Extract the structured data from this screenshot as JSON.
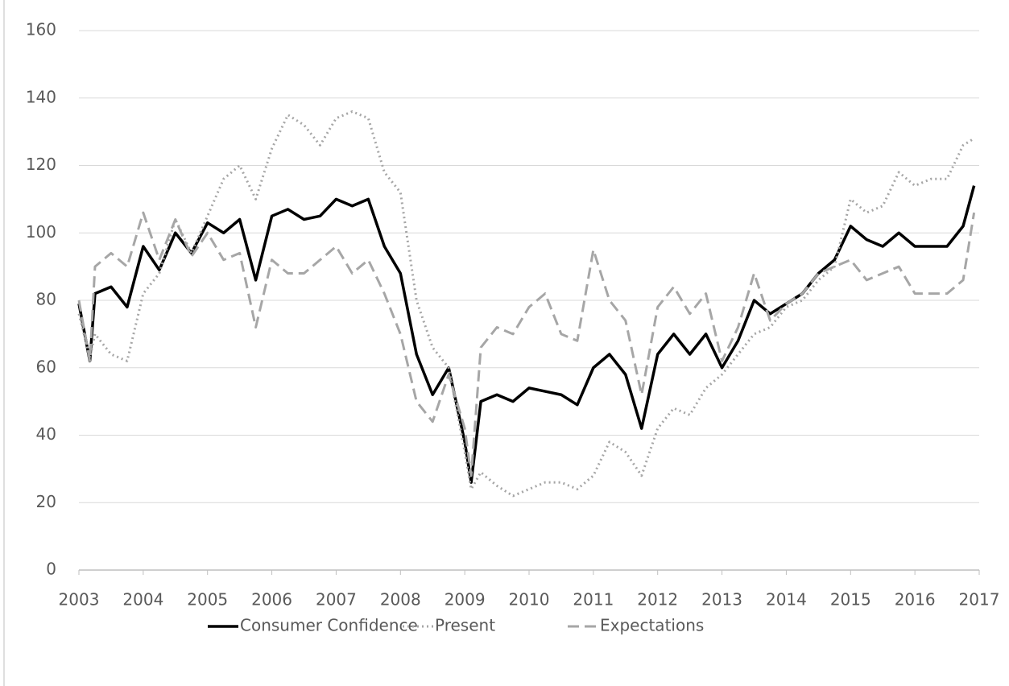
{
  "chart_data": {
    "type": "line",
    "x": [
      2003,
      2003.17,
      2003.25,
      2003.5,
      2003.75,
      2004,
      2004.25,
      2004.5,
      2004.75,
      2005,
      2005.25,
      2005.5,
      2005.75,
      2006,
      2006.25,
      2006.5,
      2006.75,
      2007,
      2007.25,
      2007.5,
      2007.75,
      2008,
      2008.25,
      2008.5,
      2008.75,
      2009,
      2009.1,
      2009.25,
      2009.5,
      2009.75,
      2010,
      2010.25,
      2010.5,
      2010.75,
      2011,
      2011.25,
      2011.5,
      2011.75,
      2012,
      2012.25,
      2012.5,
      2012.75,
      2013,
      2013.25,
      2013.5,
      2013.75,
      2014,
      2014.25,
      2014.5,
      2014.75,
      2015,
      2015.25,
      2015.5,
      2015.75,
      2016,
      2016.25,
      2016.5,
      2016.75,
      2016.92
    ],
    "series": [
      {
        "name": "Consumer Confidence",
        "color": "#000000",
        "style": "solid",
        "values": [
          79,
          62,
          82,
          84,
          78,
          96,
          89,
          100,
          94,
          103,
          100,
          104,
          86,
          105,
          107,
          104,
          105,
          110,
          108,
          110,
          96,
          88,
          64,
          52,
          60,
          38,
          26,
          50,
          52,
          50,
          54,
          53,
          52,
          49,
          60,
          64,
          58,
          42,
          64,
          70,
          64,
          70,
          60,
          68,
          80,
          76,
          79,
          82,
          88,
          92,
          102,
          98,
          96,
          100,
          96,
          96,
          96,
          102,
          114
        ]
      },
      {
        "name": "Present",
        "color": "#a6a6a6",
        "style": "dotted",
        "values": [
          76,
          63,
          70,
          64,
          62,
          82,
          88,
          104,
          94,
          105,
          116,
          120,
          110,
          125,
          135,
          132,
          126,
          134,
          136,
          134,
          118,
          112,
          80,
          66,
          60,
          35,
          24,
          29,
          25,
          22,
          24,
          26,
          26,
          24,
          28,
          38,
          35,
          28,
          42,
          48,
          46,
          54,
          58,
          64,
          70,
          72,
          78,
          80,
          86,
          90,
          110,
          106,
          108,
          118,
          114,
          116,
          116,
          126,
          128
        ]
      },
      {
        "name": "Expectations",
        "color": "#a6a6a6",
        "style": "dashed",
        "values": [
          80,
          62,
          90,
          94,
          90,
          106,
          92,
          104,
          93,
          100,
          92,
          94,
          72,
          92,
          88,
          88,
          92,
          96,
          88,
          92,
          82,
          70,
          50,
          44,
          58,
          42,
          28,
          66,
          72,
          70,
          78,
          82,
          70,
          68,
          95,
          80,
          74,
          52,
          78,
          84,
          76,
          82,
          62,
          72,
          88,
          74,
          79,
          82,
          88,
          90,
          92,
          86,
          88,
          90,
          82,
          82,
          82,
          86,
          106
        ]
      }
    ],
    "xlim": [
      2003,
      2017
    ],
    "xticks": [
      2003,
      2004,
      2005,
      2006,
      2007,
      2008,
      2009,
      2010,
      2011,
      2012,
      2013,
      2014,
      2015,
      2016,
      2017
    ],
    "ylim": [
      0,
      160
    ],
    "yticks": [
      0,
      20,
      40,
      60,
      80,
      100,
      120,
      140,
      160
    ],
    "grid": true,
    "legend": "bottom"
  }
}
